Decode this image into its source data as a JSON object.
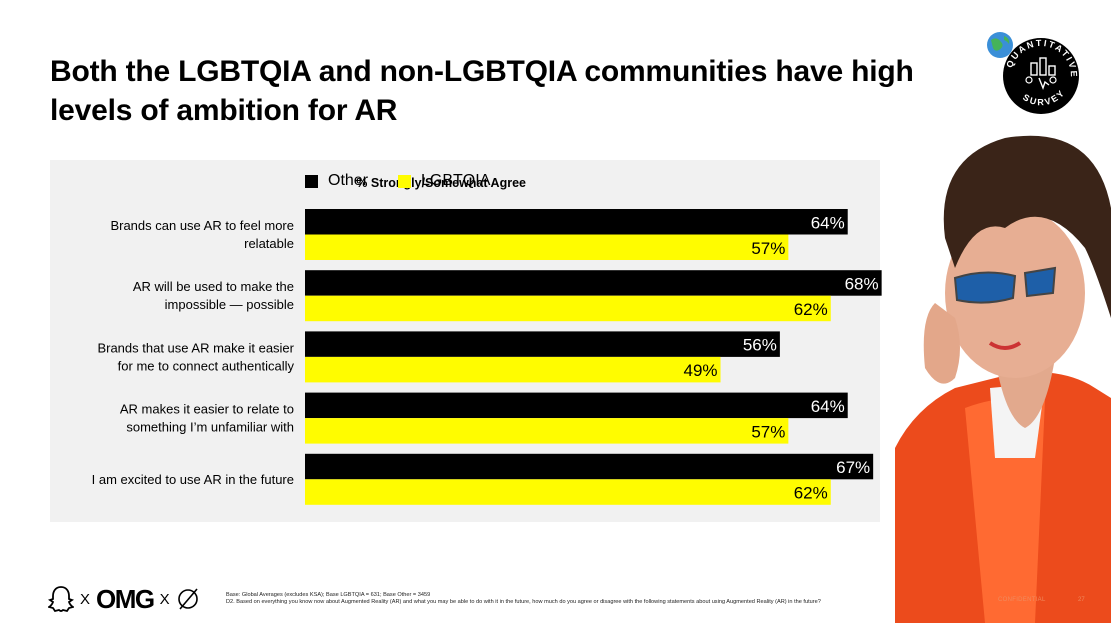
{
  "title": "Both the LGBTQIA and non-LGBTQIA communities have high levels of ambition for AR",
  "badge": {
    "text": "QUANTITATIVE SURVEY"
  },
  "chart_data": {
    "type": "bar",
    "orientation": "horizontal",
    "title": "",
    "measure_label": "% Strongly/Somewhat Agree",
    "categories": [
      [
        "Brands can use AR to feel more",
        "relatable"
      ],
      [
        "AR will be used to make the",
        "impossible — possible"
      ],
      [
        "Brands that use AR make it easier",
        "for me to connect authentically"
      ],
      [
        "AR makes it easier to relate to",
        "something I’m unfamiliar with"
      ],
      [
        "I am excited to use AR in the future"
      ]
    ],
    "series": [
      {
        "name": "Other",
        "color": "#000000",
        "label_color": "#ffffff",
        "values": [
          64,
          68,
          56,
          64,
          67
        ],
        "labels": [
          "64%",
          "68%",
          "56%",
          "64%",
          "67%"
        ]
      },
      {
        "name": "LGBTQIA",
        "color": "#fffc00",
        "label_color": "#000000",
        "values": [
          57,
          62,
          49,
          57,
          62
        ],
        "labels": [
          "57%",
          "62%",
          "49%",
          "57%",
          "62%"
        ]
      }
    ],
    "xlim": [
      0,
      100
    ],
    "grid": false,
    "legend": "top-left"
  },
  "footer": {
    "logo_brand": "OMG",
    "separator": "X",
    "base_note": "Base: Global Averages (excludes KSA); Base LGBTQIA = 631; Base Other = 3459",
    "question": "D2. Based on everything you know now about Augmented Reality (AR) and what you may be able to do with it in the future, how much do you agree or disagree with the following statements about using Augmented Reality (AR) in the future?",
    "confidential": "CONFIDENTIAL",
    "page": "27"
  }
}
